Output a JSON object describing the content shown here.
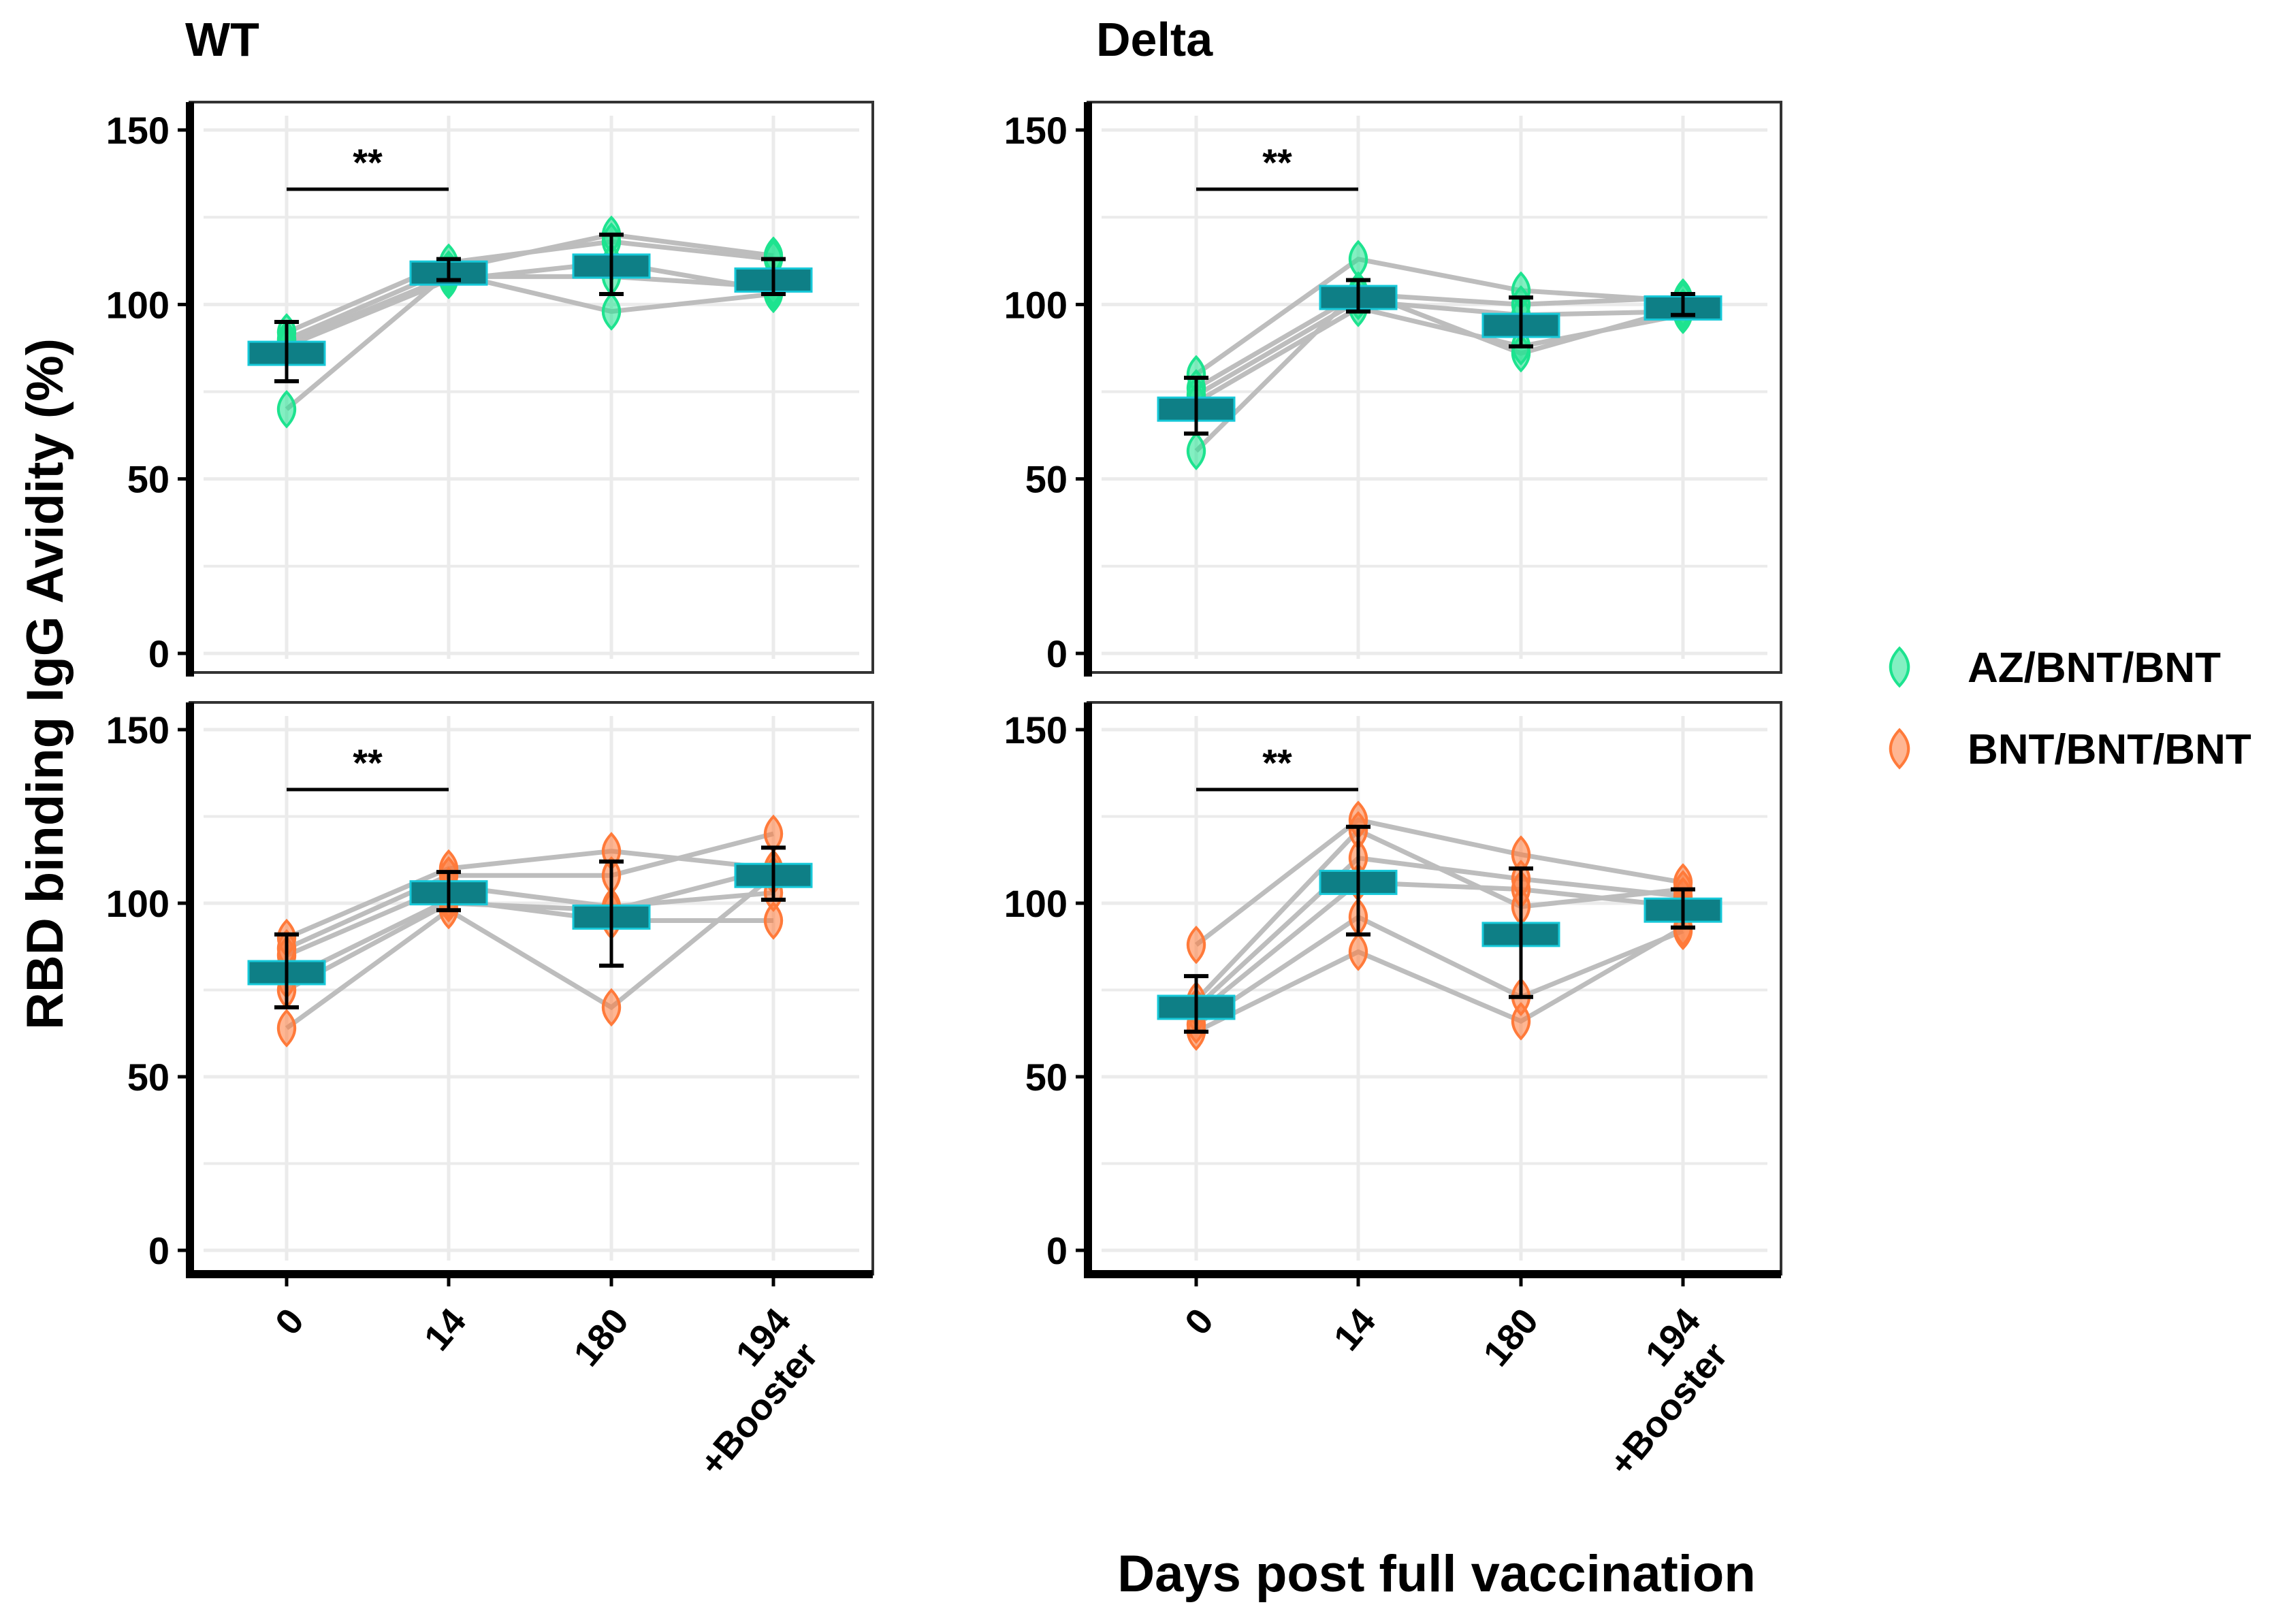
{
  "chart_data": {
    "type": "scatter",
    "ylabel": "RBD binding IgG Avidity (%)",
    "xlabel": "Days post full vaccination",
    "ylim": [
      0,
      150
    ],
    "yticks": [
      "0",
      "50",
      "100",
      "150"
    ],
    "ytick_values": [
      0,
      50,
      100,
      150
    ],
    "grid": true,
    "categories": [
      "0",
      "14",
      "180",
      "194"
    ],
    "category_sublabels": [
      "",
      "",
      "",
      "+Booster"
    ],
    "legend_position": "right",
    "legend": [
      {
        "label": "AZ/BNT/BNT",
        "color": "#1de38f"
      },
      {
        "label": "BNT/BNT/BNT",
        "color": "#ff7a3a"
      }
    ],
    "colors": {
      "mean_box": "#0e7f86",
      "mean_border": "#16c8d8",
      "line": "#bdbdbd"
    },
    "panels": [
      {
        "title": "WT",
        "group": 0,
        "significance": "**",
        "subjects": [
          [
            92,
            112,
            118,
            113
          ],
          [
            90,
            110,
            120,
            114
          ],
          [
            89,
            108,
            108,
            105
          ],
          [
            88,
            107,
            112,
            104
          ],
          [
            70,
            109,
            98,
            103
          ]
        ],
        "mean": [
          86,
          109,
          111,
          107
        ],
        "err_low": [
          78,
          107,
          103,
          103
        ],
        "err_high": [
          95,
          113,
          120,
          113
        ]
      },
      {
        "title": "Delta",
        "group": 0,
        "significance": "**",
        "subjects": [
          [
            80,
            113,
            104,
            101
          ],
          [
            76,
            103,
            100,
            102
          ],
          [
            74,
            101,
            97,
            98
          ],
          [
            72,
            99,
            88,
            97
          ],
          [
            58,
            104,
            86,
            99
          ]
        ],
        "mean": [
          70,
          102,
          94,
          99
        ],
        "err_low": [
          63,
          98,
          88,
          97
        ],
        "err_high": [
          79,
          107,
          102,
          103
        ]
      },
      {
        "title": "",
        "group": 1,
        "significance": "**",
        "subjects": [
          [
            90,
            110,
            115,
            110
          ],
          [
            87,
            108,
            108,
            120
          ],
          [
            85,
            105,
            99,
            103
          ],
          [
            75,
            100,
            98,
            110
          ],
          [
            78,
            101,
            95,
            95
          ],
          [
            64,
            98,
            70,
            108
          ]
        ],
        "mean": [
          80,
          103,
          96,
          108
        ],
        "err_low": [
          70,
          98,
          82,
          101
        ],
        "err_high": [
          91,
          109,
          112,
          116
        ]
      },
      {
        "title": "",
        "group": 1,
        "significance": "**",
        "subjects": [
          [
            88,
            124,
            114,
            106
          ],
          [
            72,
            121,
            99,
            104
          ],
          [
            70,
            113,
            107,
            102
          ],
          [
            68,
            106,
            104,
            99
          ],
          [
            65,
            96,
            73,
            92
          ],
          [
            63,
            86,
            66,
            93
          ]
        ],
        "mean": [
          70,
          106,
          91,
          98
        ],
        "err_low": [
          63,
          91,
          73,
          93
        ],
        "err_high": [
          79,
          122,
          110,
          104
        ]
      }
    ]
  }
}
